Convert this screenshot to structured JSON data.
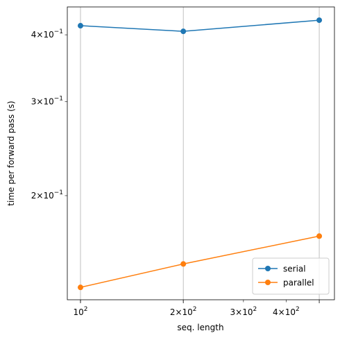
{
  "chart_data": {
    "type": "line",
    "x_label": "seq. length",
    "y_label": "time per forward pass (s)",
    "x": [
      100,
      200,
      500
    ],
    "series": [
      {
        "name": "serial",
        "color": "#1f77b4",
        "values": [
          0.416,
          0.406,
          0.426
        ]
      },
      {
        "name": "parallel",
        "color": "#ff7f0e",
        "values": [
          0.1347,
          0.149,
          0.168
        ]
      }
    ],
    "xscale": "log",
    "yscale": "log",
    "xlim": [
      91.5,
      554
    ],
    "ylim": [
      0.1277,
      0.451
    ],
    "xticks": [
      {
        "value": 100,
        "label": "10",
        "exponent": "2"
      },
      {
        "value": 200,
        "label": "2×10",
        "exponent": "2"
      },
      {
        "value": 300,
        "label": "3×10",
        "exponent": "2"
      },
      {
        "value": 400,
        "label": "4×10",
        "exponent": "2"
      }
    ],
    "xgrid": [
      100,
      200,
      500
    ],
    "yticks": [
      {
        "value": 0.2,
        "label": "2×10",
        "exponent": "−1"
      },
      {
        "value": 0.3,
        "label": "3×10",
        "exponent": "−1"
      },
      {
        "value": 0.4,
        "label": "4×10",
        "exponent": "−1"
      }
    ],
    "grid": true,
    "legend": "lower right"
  }
}
